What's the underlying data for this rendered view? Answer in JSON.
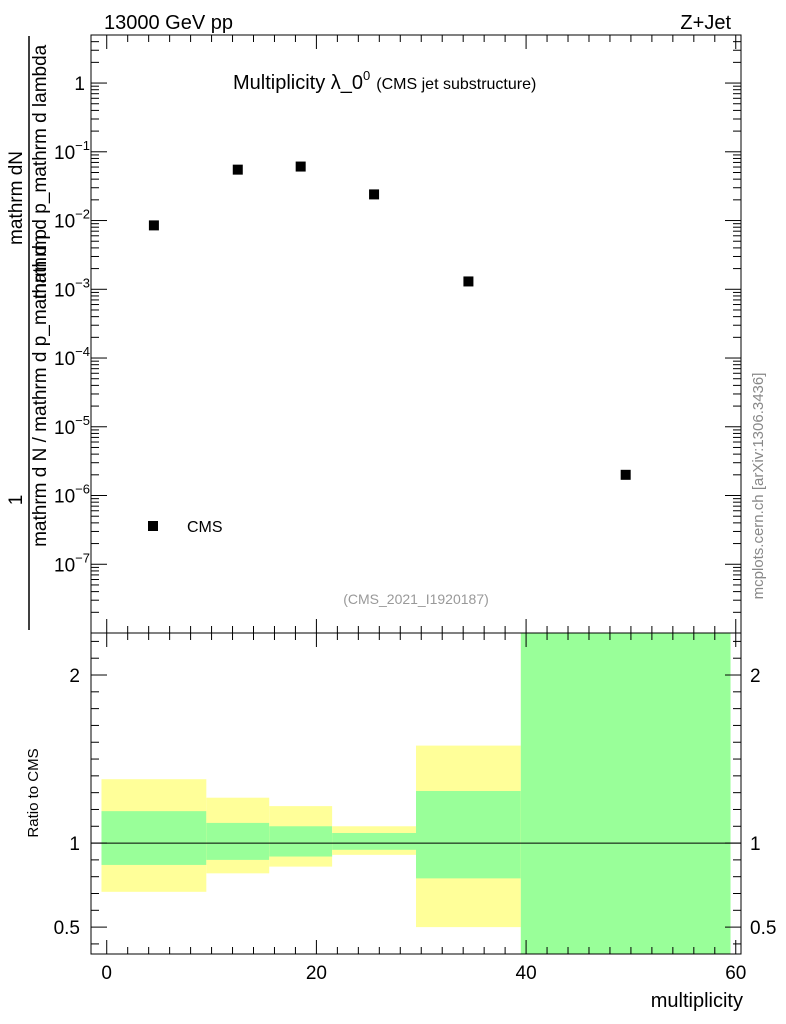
{
  "header": {
    "left": "13000 GeV pp",
    "right": "Z+Jet"
  },
  "side_label": "mcplots.cern.ch [arXiv:1306.3436]",
  "chart_data": [
    {
      "type": "scatter",
      "title": "Multiplicity λ_0",
      "title_superscript": "0",
      "subtitle": "(CMS jet substructure)",
      "analysis_tag": "(CMS_2021_I1920187)",
      "ylabel_numerator": "mathrm dN",
      "ylabel_denominator": "mathrm d p_mathrm d lambda",
      "ylabel_prefix_numerator": "1",
      "ylabel_prefix_denominator": "mathrm d N / mathrm d p_mathrm d p",
      "y_scale": "log",
      "xlim": [
        -1.5,
        60.5
      ],
      "ylim": [
        1e-08,
        5
      ],
      "y_ticks": [
        {
          "value": 1,
          "label": "1",
          "exp": ""
        },
        {
          "value": 0.1,
          "label": "10",
          "exp": "−1"
        },
        {
          "value": 0.01,
          "label": "10",
          "exp": "−2"
        },
        {
          "value": 0.001,
          "label": "10",
          "exp": "−3"
        },
        {
          "value": 0.0001,
          "label": "10",
          "exp": "−4"
        },
        {
          "value": 1e-05,
          "label": "10",
          "exp": "−5"
        },
        {
          "value": 1e-06,
          "label": "10",
          "exp": "−6"
        },
        {
          "value": 1e-07,
          "label": "10",
          "exp": "−7"
        }
      ],
      "legend": {
        "placement": "bottom-left",
        "entries": [
          "CMS"
        ]
      },
      "series": [
        {
          "name": "CMS",
          "x": [
            4.5,
            12.5,
            18.5,
            25.5,
            34.5,
            49.5
          ],
          "y": [
            0.0085,
            0.055,
            0.061,
            0.024,
            0.0013,
            2e-06
          ]
        }
      ]
    },
    {
      "type": "area",
      "ylabel": "Ratio to CMS",
      "xlabel": "multiplicity",
      "xlim": [
        -1.5,
        60.5
      ],
      "ylim": [
        0.34,
        2.25
      ],
      "x_ticks": [
        0,
        20,
        40,
        60
      ],
      "y_ticks": [
        0.5,
        1,
        2
      ],
      "reference_line": 1,
      "bins": [
        {
          "lo": -0.5,
          "hi": 9.5,
          "inner": [
            0.87,
            1.19
          ],
          "outer": [
            0.71,
            1.38
          ]
        },
        {
          "lo": 9.5,
          "hi": 15.5,
          "inner": [
            0.9,
            1.12
          ],
          "outer": [
            0.82,
            1.27
          ]
        },
        {
          "lo": 15.5,
          "hi": 21.5,
          "inner": [
            0.92,
            1.1
          ],
          "outer": [
            0.86,
            1.22
          ]
        },
        {
          "lo": 21.5,
          "hi": 29.5,
          "inner": [
            0.96,
            1.06
          ],
          "outer": [
            0.93,
            1.1
          ]
        },
        {
          "lo": 29.5,
          "hi": 39.5,
          "inner": [
            0.79,
            1.31
          ],
          "outer": [
            0.5,
            1.58
          ]
        },
        {
          "lo": 39.5,
          "hi": 59.5,
          "inner": [
            0.34,
            2.25
          ],
          "outer": [
            0.34,
            2.25
          ]
        }
      ],
      "colors": {
        "inner": "#99ff99",
        "outer": "#ffff99"
      }
    }
  ]
}
